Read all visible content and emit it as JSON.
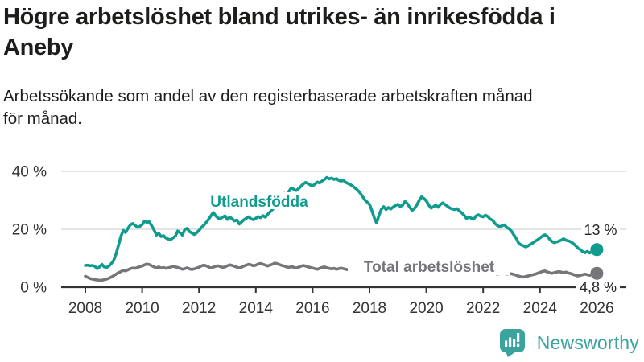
{
  "header": {
    "title_lines": [
      "Högre arbetslöshet bland utrikes- än inrikesfödda i",
      "Aneby"
    ],
    "subtitle_lines": [
      "Arbetssökande som andel av den registerbaserade arbetskraften månad",
      "för månad."
    ]
  },
  "branding": {
    "logo_text": "Newsworthy",
    "logo_icon": "bar-chart-speech-bubble-icon"
  },
  "colors": {
    "teal": "#0f9b8e",
    "gray": "#75757a",
    "axis": "#333333",
    "grid": "#dcdcdc",
    "annotation_text": "#252525",
    "logo_teal": "#3aa39c",
    "background": "#ffffff"
  },
  "chart_data": {
    "type": "line",
    "title": "Högre arbetslöshet bland utrikes- än inrikesfödda i Aneby",
    "subtitle": "Arbetssökande som andel av den registerbaserade arbetskraften månad för månad.",
    "xlabel": "",
    "ylabel": "",
    "x_start_year": 2008,
    "x_end_year": 2026,
    "points_per_year": 12,
    "ylim": [
      0,
      42
    ],
    "grid": "horizontal",
    "legend_position": "inline-labels",
    "yticks": [
      {
        "value": 0,
        "label": "0 %"
      },
      {
        "value": 20,
        "label": "20 %"
      },
      {
        "value": 40,
        "label": "40 %"
      }
    ],
    "xticks": [
      2008,
      2010,
      2012,
      2014,
      2016,
      2018,
      2020,
      2022,
      2024,
      2026
    ],
    "series": [
      {
        "name": "Utlandsfödda",
        "color": "#0f9b8e",
        "end_label": "13 %",
        "end_value": 13.0,
        "values": [
          7.5,
          7.6,
          7.4,
          7.5,
          7.2,
          6.4,
          7.0,
          7.9,
          7.0,
          6.8,
          7.3,
          8.2,
          9.3,
          11.5,
          14.5,
          17.5,
          19.6,
          18.9,
          20.3,
          21.5,
          22.0,
          21.4,
          20.7,
          21.0,
          21.6,
          22.8,
          22.4,
          22.6,
          21.2,
          19.8,
          18.0,
          18.6,
          17.5,
          17.8,
          17.0,
          16.6,
          16.4,
          17.0,
          17.6,
          19.4,
          18.8,
          18.0,
          19.9,
          20.3,
          19.2,
          18.7,
          18.2,
          18.8,
          19.6,
          20.6,
          21.4,
          22.3,
          23.4,
          24.6,
          25.8,
          24.7,
          23.9,
          23.7,
          24.2,
          24.6,
          23.4,
          24.2,
          23.6,
          22.9,
          23.2,
          21.8,
          22.5,
          23.3,
          23.8,
          24.3,
          23.6,
          23.3,
          23.8,
          24.4,
          24.0,
          24.7,
          24.2,
          25.1,
          26.0,
          26.8,
          27.9,
          29.2,
          30.6,
          31.8,
          32.4,
          32.0,
          33.1,
          34.3,
          33.8,
          33.4,
          34.0,
          34.8,
          35.6,
          36.2,
          35.8,
          35.3,
          35.0,
          35.6,
          36.3,
          36.0,
          36.7,
          37.2,
          37.9,
          37.4,
          37.7,
          37.2,
          37.5,
          36.9,
          36.6,
          36.9,
          36.2,
          35.8,
          35.4,
          34.8,
          34.2,
          33.5,
          32.6,
          31.4,
          30.2,
          29.4,
          28.6,
          26.5,
          24.0,
          22.2,
          24.8,
          26.9,
          27.8,
          26.8,
          27.5,
          27.0,
          27.7,
          28.2,
          28.6,
          27.9,
          28.3,
          29.6,
          28.8,
          27.6,
          26.5,
          27.2,
          28.4,
          30.0,
          31.2,
          30.6,
          29.8,
          28.4,
          27.3,
          27.8,
          28.3,
          27.6,
          28.6,
          29.1,
          28.5,
          27.9,
          27.3,
          27.0,
          26.8,
          27.1,
          26.3,
          25.6,
          24.8,
          23.7,
          24.3,
          23.8,
          23.5,
          24.6,
          25.0,
          24.5,
          24.3,
          24.9,
          24.4,
          23.5,
          23.1,
          22.0,
          21.3,
          20.9,
          21.2,
          21.5,
          20.6,
          20.1,
          19.3,
          18.0,
          16.8,
          15.2,
          14.6,
          14.3,
          13.9,
          14.3,
          14.8,
          15.3,
          15.9,
          16.4,
          17.0,
          17.6,
          18.1,
          17.7,
          16.6,
          15.8,
          15.4,
          15.6,
          15.9,
          16.3,
          16.7,
          16.2,
          16.0,
          15.7,
          15.1,
          14.4,
          13.5,
          13.0,
          12.3,
          11.9,
          12.4,
          11.8,
          12.3,
          12.6,
          13.0
        ]
      },
      {
        "name": "Total arbetslöshet",
        "color": "#75757a",
        "end_label": "4,8 %",
        "end_value": 4.8,
        "values": [
          3.8,
          3.4,
          3.0,
          2.8,
          2.6,
          2.5,
          2.4,
          2.4,
          2.6,
          2.8,
          3.1,
          3.5,
          4.0,
          4.5,
          5.0,
          5.4,
          5.8,
          5.6,
          6.0,
          6.4,
          6.6,
          6.5,
          6.8,
          7.1,
          7.3,
          7.7,
          8.0,
          7.8,
          7.4,
          7.0,
          6.7,
          7.0,
          6.6,
          6.8,
          6.5,
          6.7,
          6.9,
          7.2,
          7.0,
          6.8,
          6.5,
          6.2,
          6.4,
          6.7,
          6.3,
          6.1,
          6.3,
          6.6,
          6.9,
          7.3,
          7.6,
          7.4,
          7.0,
          6.6,
          6.9,
          7.2,
          7.4,
          7.1,
          6.8,
          7.0,
          7.4,
          7.7,
          7.5,
          7.2,
          6.9,
          6.6,
          6.9,
          7.3,
          7.6,
          7.9,
          7.7,
          7.4,
          7.6,
          8.0,
          8.2,
          7.9,
          7.6,
          7.3,
          7.6,
          7.9,
          8.3,
          8.1,
          7.8,
          7.5,
          7.3,
          7.0,
          6.8,
          7.1,
          6.9,
          6.6,
          6.9,
          7.2,
          7.5,
          7.3,
          7.0,
          6.8,
          6.6,
          6.4,
          6.2,
          6.5,
          6.8,
          7.0,
          6.7,
          6.5,
          6.3,
          6.5,
          6.2,
          6.4,
          6.6,
          6.4,
          6.2,
          6.0,
          6.2,
          6.4,
          6.1,
          5.9,
          6.1,
          6.3,
          6.0,
          6.2,
          6.0,
          5.8,
          5.6,
          5.4,
          5.6,
          5.9,
          5.6,
          5.4,
          5.6,
          5.8,
          5.5,
          5.7,
          5.9,
          5.7,
          5.5,
          5.7,
          5.9,
          5.6,
          5.4,
          5.6,
          5.8,
          6.0,
          6.2,
          6.0,
          5.8,
          5.6,
          5.9,
          6.3,
          6.6,
          6.4,
          6.6,
          6.3,
          6.1,
          5.9,
          5.7,
          5.5,
          5.7,
          5.9,
          5.7,
          5.5,
          5.3,
          5.1,
          5.3,
          5.1,
          4.9,
          5.1,
          5.3,
          5.1,
          5.3,
          5.5,
          5.3,
          5.1,
          4.9,
          4.7,
          4.5,
          4.7,
          4.9,
          4.7,
          4.5,
          4.7,
          4.6,
          4.4,
          4.1,
          3.8,
          3.6,
          3.5,
          3.7,
          3.9,
          4.1,
          4.3,
          4.5,
          4.8,
          5.1,
          5.4,
          5.6,
          5.3,
          5.0,
          4.8,
          5.0,
          5.2,
          5.4,
          5.2,
          5.0,
          5.2,
          4.9,
          4.7,
          4.4,
          4.1,
          3.9,
          4.1,
          4.3,
          4.5,
          4.3,
          4.1,
          4.4,
          4.6,
          4.8
        ]
      }
    ]
  }
}
